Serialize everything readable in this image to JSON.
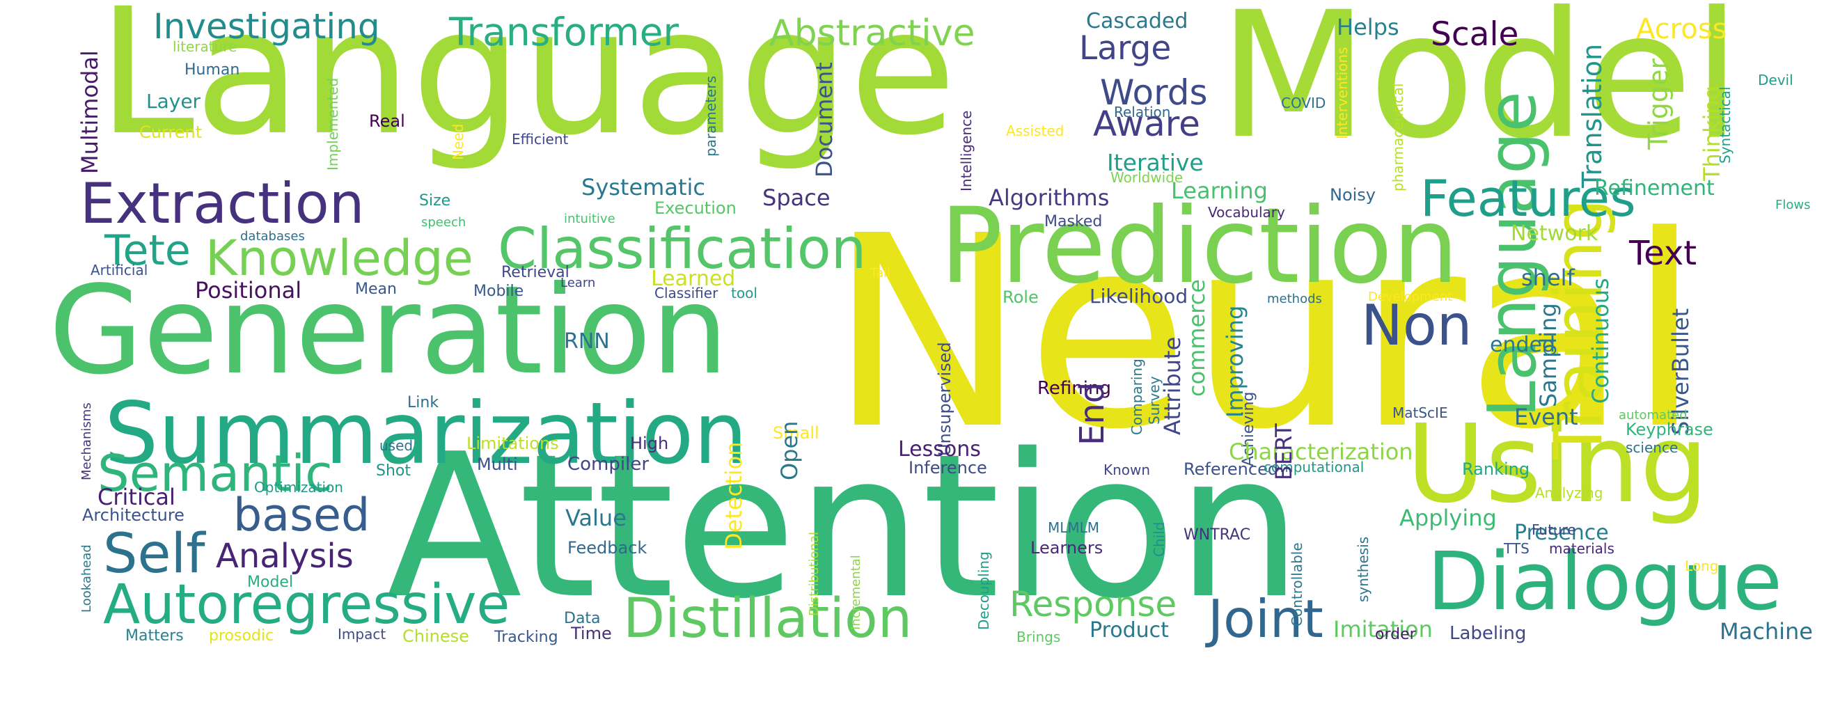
{
  "words": [
    {
      "text": "Language",
      "color": "#a2da37"
    },
    {
      "text": "Model",
      "color": "#a5db36"
    },
    {
      "text": "Neural",
      "color": "#e7e419"
    },
    {
      "text": "Attention",
      "color": "#35b779"
    },
    {
      "text": "Generation",
      "color": "#4cc26c"
    },
    {
      "text": "Prediction",
      "color": "#7ad151"
    },
    {
      "text": "Using",
      "color": "#bddf26"
    },
    {
      "text": "Dialogue",
      "color": "#2db27d"
    },
    {
      "text": "Summarization",
      "color": "#23a983"
    },
    {
      "text": "Extraction",
      "color": "#46317e"
    },
    {
      "text": "Classification",
      "color": "#54c568"
    },
    {
      "text": "Knowledge",
      "color": "#75d054"
    },
    {
      "text": "Language",
      "color": "#4ac16d"
    },
    {
      "text": "Training",
      "color": "#d8e219"
    },
    {
      "text": "Features",
      "color": "#1f9e89"
    },
    {
      "text": "Distillation",
      "color": "#5ec962"
    },
    {
      "text": "Autoregressive",
      "color": "#25ac82"
    },
    {
      "text": "Semantic",
      "color": "#2fb47c"
    },
    {
      "text": "Self",
      "color": "#2c728e"
    },
    {
      "text": "based",
      "color": "#365d8d"
    },
    {
      "text": "Joint",
      "color": "#31668e"
    },
    {
      "text": "Non",
      "color": "#3b528b"
    },
    {
      "text": "Transformer",
      "color": "#29af7f"
    },
    {
      "text": "Investigating",
      "color": "#228c8d"
    },
    {
      "text": "Abstractive",
      "color": "#7fd34e"
    },
    {
      "text": "Large",
      "color": "#414487"
    },
    {
      "text": "Words",
      "color": "#3e4a89"
    },
    {
      "text": "Scale",
      "color": "#440154"
    },
    {
      "text": "Across",
      "color": "#fde725"
    },
    {
      "text": "Response",
      "color": "#5ec962"
    },
    {
      "text": "Analysis",
      "color": "#482475"
    },
    {
      "text": "Tete",
      "color": "#20a386"
    },
    {
      "text": "Aware",
      "color": "#433e85"
    },
    {
      "text": "Text",
      "color": "#440154"
    },
    {
      "text": "Multimodal",
      "color": "#481a6c"
    },
    {
      "text": "Cascaded",
      "color": "#2a788e"
    },
    {
      "text": "Helps",
      "color": "#26828e"
    },
    {
      "text": "Translation",
      "color": "#1f968b"
    },
    {
      "text": "Trigger",
      "color": "#90d743"
    },
    {
      "text": "Thinking",
      "color": "#b5de2b"
    },
    {
      "text": "Refinement",
      "color": "#2fb47c"
    },
    {
      "text": "SilverBullet",
      "color": "#38588c"
    },
    {
      "text": "Layer",
      "color": "#21918c"
    },
    {
      "text": "Human",
      "color": "#31688e"
    },
    {
      "text": "Current",
      "color": "#dfe318"
    },
    {
      "text": "literature",
      "color": "#8fd744"
    },
    {
      "text": "Real",
      "color": "#440154"
    },
    {
      "text": "Need",
      "color": "#fde725"
    },
    {
      "text": "Efficient",
      "color": "#404688"
    },
    {
      "text": "Implemented",
      "color": "#73d056"
    },
    {
      "text": "parameters",
      "color": "#2a788e"
    },
    {
      "text": "Intelligence",
      "color": "#472d7b"
    },
    {
      "text": "Relation",
      "color": "#31688e"
    },
    {
      "text": "Assisted",
      "color": "#fde725"
    },
    {
      "text": "Interventions",
      "color": "#fde725"
    },
    {
      "text": "COVID",
      "color": "#2c728e"
    },
    {
      "text": "pharmaceutical",
      "color": "#b8de29"
    },
    {
      "text": "Syntactical",
      "color": "#1fa187"
    },
    {
      "text": "Devil",
      "color": "#1f9e89"
    },
    {
      "text": "Document",
      "color": "#3b528b"
    },
    {
      "text": "Iterative",
      "color": "#1f9e89"
    },
    {
      "text": "Systematic",
      "color": "#2a788e"
    },
    {
      "text": "Space",
      "color": "#46337e"
    },
    {
      "text": "Algorithms",
      "color": "#443a83"
    },
    {
      "text": "Learning",
      "color": "#48c16e"
    },
    {
      "text": "Noisy",
      "color": "#31688e"
    },
    {
      "text": "Worldwide",
      "color": "#7fd34e"
    },
    {
      "text": "Masked",
      "color": "#3e4989"
    },
    {
      "text": "Vocabulary",
      "color": "#482878"
    },
    {
      "text": "Network",
      "color": "#a0da39"
    },
    {
      "text": "Execution",
      "color": "#56c667"
    },
    {
      "text": "Size",
      "color": "#1f988b"
    },
    {
      "text": "speech",
      "color": "#44bf70"
    },
    {
      "text": "intuitive",
      "color": "#4ac16d"
    },
    {
      "text": "databases",
      "color": "#2e6f8e"
    },
    {
      "text": "Artificial",
      "color": "#3b528b"
    },
    {
      "text": "Positional",
      "color": "#471063"
    },
    {
      "text": "Mean",
      "color": "#39558c"
    },
    {
      "text": "Mobile",
      "color": "#38598c"
    },
    {
      "text": "Retrieval",
      "color": "#3f4788"
    },
    {
      "text": "Learn",
      "color": "#3f4788"
    },
    {
      "text": "Learned",
      "color": "#cae11f"
    },
    {
      "text": "Classifier",
      "color": "#3e4a89"
    },
    {
      "text": "tool",
      "color": "#1e9b8a"
    },
    {
      "text": "Tail",
      "color": "#fde725"
    },
    {
      "text": "Development",
      "color": "#fde725"
    },
    {
      "text": "Flows",
      "color": "#29af7f"
    },
    {
      "text": "shelf",
      "color": "#2e6e8e"
    },
    {
      "text": "Role",
      "color": "#50c46a"
    },
    {
      "text": "Likelihood",
      "color": "#3e4a89"
    },
    {
      "text": "methods",
      "color": "#2d718e"
    },
    {
      "text": "Attribute",
      "color": "#3f4788"
    },
    {
      "text": "Improving",
      "color": "#25848e"
    },
    {
      "text": "Sampling",
      "color": "#2a768e"
    },
    {
      "text": "Continuous",
      "color": "#22a884"
    },
    {
      "text": "ended",
      "color": "#2a788e"
    },
    {
      "text": "Event",
      "color": "#2e6f8e"
    },
    {
      "text": "RNN",
      "color": "#2d718e"
    },
    {
      "text": "Link",
      "color": "#2e6f8e"
    },
    {
      "text": "Unsupervised",
      "color": "#3d4e8a"
    },
    {
      "text": "Refining",
      "color": "#440154"
    },
    {
      "text": "commerce",
      "color": "#4ac16d"
    },
    {
      "text": "Survey",
      "color": "#2a788e"
    },
    {
      "text": "Comparing",
      "color": "#2a788e"
    },
    {
      "text": "MatScIE",
      "color": "#39558c"
    },
    {
      "text": "automated",
      "color": "#5ec962"
    },
    {
      "text": "Keyphrase",
      "color": "#31b57b"
    },
    {
      "text": "science",
      "color": "#2d708e"
    },
    {
      "text": "Small",
      "color": "#fde725"
    },
    {
      "text": "Open",
      "color": "#2a788e"
    },
    {
      "text": "Lessons",
      "color": "#482173"
    },
    {
      "text": "Achieving",
      "color": "#3b528b"
    },
    {
      "text": "Characterization",
      "color": "#8cd646"
    },
    {
      "text": "Mechanisms",
      "color": "#46337e"
    },
    {
      "text": "used",
      "color": "#2c728e"
    },
    {
      "text": "Limitations",
      "color": "#bddf26"
    },
    {
      "text": "High",
      "color": "#472d7b"
    },
    {
      "text": "Critical",
      "color": "#482071"
    },
    {
      "text": "Shot",
      "color": "#21918c"
    },
    {
      "text": "Multi",
      "color": "#3b528b"
    },
    {
      "text": "Compiler",
      "color": "#414487"
    },
    {
      "text": "Inference",
      "color": "#3e4989"
    },
    {
      "text": "Known",
      "color": "#404688"
    },
    {
      "text": "Referenced",
      "color": "#3b528b"
    },
    {
      "text": "computational",
      "color": "#1f988b"
    },
    {
      "text": "Ranking",
      "color": "#22a884"
    },
    {
      "text": "BERT",
      "color": "#46307e"
    },
    {
      "text": "Analyzing",
      "color": "#b5de2b"
    },
    {
      "text": "Optimization",
      "color": "#1f9a8a"
    },
    {
      "text": "Architecture",
      "color": "#3b528b"
    },
    {
      "text": "Lookahead",
      "color": "#2a788e"
    },
    {
      "text": "Model",
      "color": "#27ad81"
    },
    {
      "text": "Value",
      "color": "#2a788e"
    },
    {
      "text": "Detection",
      "color": "#fde725"
    },
    {
      "text": "Feedback",
      "color": "#31688e"
    },
    {
      "text": "Distributional",
      "color": "#a8db34"
    },
    {
      "text": "Incremental",
      "color": "#8bd646"
    },
    {
      "text": "Decoupling",
      "color": "#1f9e89"
    },
    {
      "text": "MLMLM",
      "color": "#2c728e"
    },
    {
      "text": "Learners",
      "color": "#482878"
    },
    {
      "text": "Child",
      "color": "#21908d"
    },
    {
      "text": "WNTRAC",
      "color": "#46327e"
    },
    {
      "text": "Controllable",
      "color": "#2a788e"
    },
    {
      "text": "synthesis",
      "color": "#2c728e"
    },
    {
      "text": "Applying",
      "color": "#3cbb75"
    },
    {
      "text": "Presence",
      "color": "#287d8e"
    },
    {
      "text": "Future",
      "color": "#3e4989"
    },
    {
      "text": "Long",
      "color": "#fde725"
    },
    {
      "text": "TTS",
      "color": "#3b528b"
    },
    {
      "text": "materials",
      "color": "#482878"
    },
    {
      "text": "Data",
      "color": "#2d718e"
    },
    {
      "text": "Time",
      "color": "#472f7d"
    },
    {
      "text": "Tracking",
      "color": "#38598c"
    },
    {
      "text": "Chinese",
      "color": "#b5de2b"
    },
    {
      "text": "Impact",
      "color": "#3e4a89"
    },
    {
      "text": "prosodic",
      "color": "#e5e419"
    },
    {
      "text": "Matters",
      "color": "#26828e"
    },
    {
      "text": "Brings",
      "color": "#5ec962"
    },
    {
      "text": "Product",
      "color": "#2a788e"
    },
    {
      "text": "Imitation",
      "color": "#5ec962"
    },
    {
      "text": "order",
      "color": "#481a6c"
    },
    {
      "text": "Labeling",
      "color": "#404688"
    },
    {
      "text": "Machine",
      "color": "#2c728e"
    },
    {
      "text": "End",
      "color": "#472d7b"
    }
  ]
}
